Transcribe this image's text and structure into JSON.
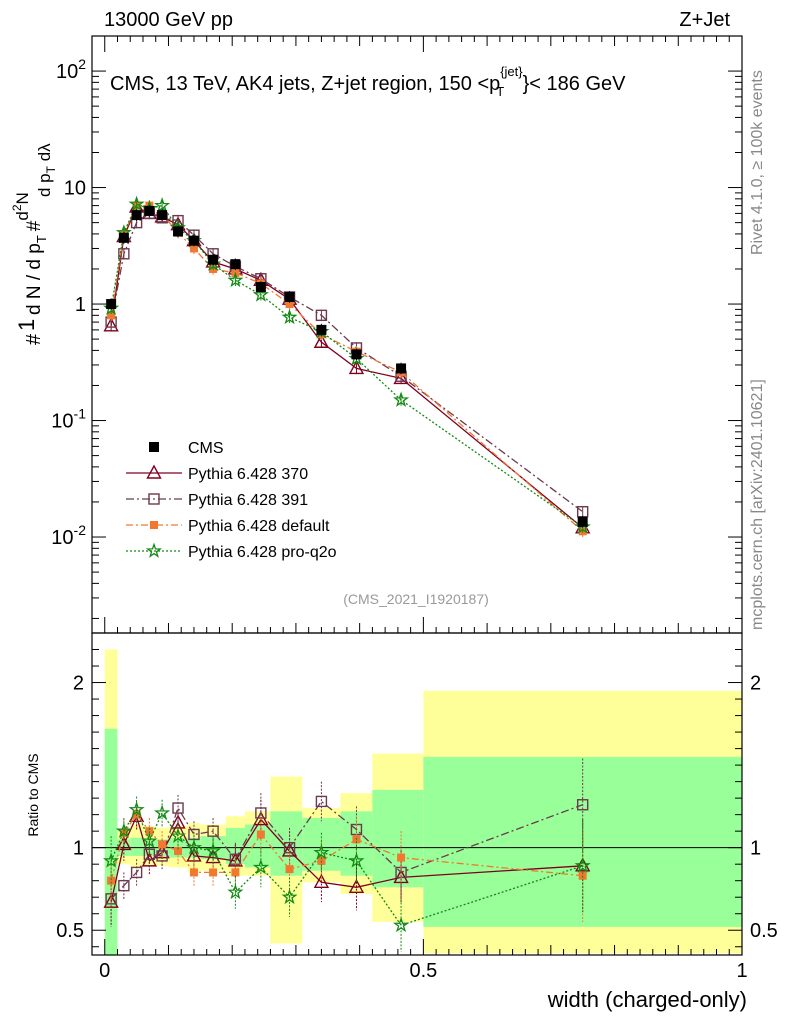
{
  "header": {
    "energy": "13000 GeV pp",
    "process": "Z+Jet"
  },
  "plot_title": {
    "main": "CMS, 13 TeV, AK4 jets, Z+jet region, 150 <p",
    "sub": "T",
    "sup": "{jet}",
    "tail": "}< 186 GeV"
  },
  "analysis_id": "(CMS_2021_I1920187)",
  "side_labels": {
    "rivet": "Rivet 4.1.0, ≥ 100k events",
    "mcplots": "mcplots.cern.ch [arXiv:2401.10621]"
  },
  "colors": {
    "cms": "#000000",
    "p370": "#800020",
    "p391": "#6b3a4e",
    "pdefault": "#f07830",
    "pq2o": "#138a13",
    "band_yellow": "#ffff99",
    "band_green": "#99ff99"
  },
  "chart_data": [
    {
      "type": "scatter",
      "panel": "main",
      "ylabel": "1/N dN/dλ",
      "yscale": "log",
      "ylim": [
        0.0015,
        200
      ],
      "xlim": [
        -0.02,
        1.0
      ],
      "ytick_labels": [
        "10^{-2}",
        "10^{-1}",
        "1",
        "10",
        "10^{2}"
      ],
      "legend": [
        {
          "name": "CMS"
        },
        {
          "name": "Pythia 6.428 370"
        },
        {
          "name": "Pythia 6.428 391"
        },
        {
          "name": "Pythia 6.428 default"
        },
        {
          "name": "Pythia 6.428 pro-q2o"
        }
      ],
      "x": [
        0.01,
        0.03,
        0.05,
        0.07,
        0.09,
        0.115,
        0.14,
        0.17,
        0.205,
        0.245,
        0.29,
        0.34,
        0.395,
        0.465,
        0.75
      ],
      "series": [
        {
          "name": "CMS",
          "values": [
            1.0,
            3.7,
            5.8,
            6.3,
            5.8,
            4.2,
            3.5,
            2.4,
            2.2,
            1.4,
            1.15,
            0.6,
            0.37,
            0.28,
            0.0135
          ]
        },
        {
          "name": "Pythia 6.428 370",
          "values": [
            0.65,
            3.8,
            6.8,
            6.0,
            5.6,
            4.8,
            3.5,
            2.3,
            2.0,
            1.6,
            1.1,
            0.47,
            0.28,
            0.23,
            0.012
          ]
        },
        {
          "name": "Pythia 6.428 391",
          "values": [
            0.7,
            2.7,
            5.0,
            6.0,
            5.5,
            5.2,
            3.9,
            2.7,
            2.1,
            1.65,
            1.15,
            0.8,
            0.42,
            0.24,
            0.0165
          ]
        },
        {
          "name": "Pythia 6.428 default",
          "values": [
            0.8,
            4.0,
            7.0,
            7.0,
            5.9,
            4.1,
            3.0,
            2.0,
            1.85,
            1.5,
            1.0,
            0.55,
            0.39,
            0.26,
            0.0112
          ]
        },
        {
          "name": "Pythia 6.428 pro-q2o",
          "values": [
            0.92,
            4.1,
            7.2,
            6.6,
            7.0,
            4.5,
            3.5,
            2.2,
            1.6,
            1.2,
            0.77,
            0.58,
            0.34,
            0.15,
            0.0122
          ]
        }
      ]
    },
    {
      "type": "scatter",
      "panel": "ratio",
      "ylabel": "Ratio to CMS",
      "xlabel": "width (charged-only)",
      "ylim": [
        0.35,
        2.3
      ],
      "xlim": [
        -0.02,
        1.0
      ],
      "ytick_labels": [
        "0.5",
        "1",
        "2"
      ],
      "xtick_labels": [
        "0",
        "0.5",
        "1"
      ],
      "x": [
        0.01,
        0.03,
        0.05,
        0.07,
        0.09,
        0.115,
        0.14,
        0.17,
        0.205,
        0.245,
        0.29,
        0.34,
        0.395,
        0.465,
        0.75
      ],
      "bins": [
        [
          0.0,
          0.02
        ],
        [
          0.02,
          0.04
        ],
        [
          0.04,
          0.06
        ],
        [
          0.06,
          0.08
        ],
        [
          0.08,
          0.1
        ],
        [
          0.1,
          0.13
        ],
        [
          0.13,
          0.15
        ],
        [
          0.15,
          0.19
        ],
        [
          0.19,
          0.22
        ],
        [
          0.22,
          0.26
        ],
        [
          0.26,
          0.31
        ],
        [
          0.31,
          0.37
        ],
        [
          0.37,
          0.42
        ],
        [
          0.42,
          0.5
        ],
        [
          0.5,
          1.0
        ]
      ],
      "band_yellow": [
        [
          0.35,
          2.2
        ],
        [
          0.9,
          1.1
        ],
        [
          0.88,
          1.14
        ],
        [
          0.89,
          1.13
        ],
        [
          0.89,
          1.12
        ],
        [
          0.88,
          1.13
        ],
        [
          0.85,
          1.15
        ],
        [
          0.86,
          1.14
        ],
        [
          0.83,
          1.19
        ],
        [
          0.83,
          1.22
        ],
        [
          0.42,
          1.43
        ],
        [
          0.79,
          1.24
        ],
        [
          0.72,
          1.33
        ],
        [
          0.55,
          1.57
        ],
        [
          0.36,
          1.95
        ]
      ],
      "band_green": [
        [
          0.35,
          1.72
        ],
        [
          0.95,
          1.05
        ],
        [
          0.95,
          1.06
        ],
        [
          0.95,
          1.05
        ],
        [
          0.95,
          1.05
        ],
        [
          0.94,
          1.06
        ],
        [
          0.94,
          1.06
        ],
        [
          0.93,
          1.07
        ],
        [
          0.9,
          1.12
        ],
        [
          0.88,
          1.14
        ],
        [
          0.83,
          1.22
        ],
        [
          0.86,
          1.18
        ],
        [
          0.83,
          1.22
        ],
        [
          0.76,
          1.35
        ],
        [
          0.52,
          1.55
        ]
      ],
      "series": [
        {
          "name": "Pythia 6.428 370",
          "values": [
            0.67,
            1.02,
            1.19,
            0.92,
            0.97,
            1.15,
            0.95,
            0.94,
            0.92,
            1.17,
            0.98,
            0.79,
            0.76,
            0.82,
            0.89
          ],
          "err": [
            0.15,
            0.1,
            0.08,
            0.08,
            0.08,
            0.08,
            0.08,
            0.08,
            0.1,
            0.12,
            0.12,
            0.12,
            0.14,
            0.16,
            0.28
          ]
        },
        {
          "name": "Pythia 6.428 391",
          "values": [
            0.69,
            0.77,
            0.85,
            0.96,
            0.95,
            1.24,
            1.08,
            1.1,
            0.93,
            1.21,
            1.0,
            1.28,
            1.11,
            0.85,
            1.26
          ],
          "err": [
            0.15,
            0.08,
            0.08,
            0.08,
            0.08,
            0.08,
            0.08,
            0.08,
            0.1,
            0.12,
            0.12,
            0.12,
            0.14,
            0.16,
            0.28
          ]
        },
        {
          "name": "Pythia 6.428 default",
          "values": [
            0.8,
            1.09,
            1.2,
            1.1,
            1.02,
            0.98,
            0.85,
            0.85,
            0.85,
            1.08,
            0.87,
            0.92,
            1.05,
            0.94,
            0.83
          ],
          "err": [
            0.15,
            0.08,
            0.08,
            0.08,
            0.08,
            0.08,
            0.08,
            0.08,
            0.1,
            0.12,
            0.12,
            0.12,
            0.14,
            0.16,
            0.28
          ]
        },
        {
          "name": "Pythia 6.428 pro-q2o",
          "values": [
            0.92,
            1.1,
            1.23,
            1.04,
            1.21,
            1.07,
            1.0,
            0.98,
            0.73,
            0.88,
            0.7,
            0.97,
            0.92,
            0.53,
            0.89
          ],
          "err": [
            0.15,
            0.08,
            0.08,
            0.08,
            0.08,
            0.08,
            0.08,
            0.08,
            0.1,
            0.12,
            0.12,
            0.12,
            0.14,
            0.16,
            0.28
          ]
        }
      ]
    }
  ]
}
